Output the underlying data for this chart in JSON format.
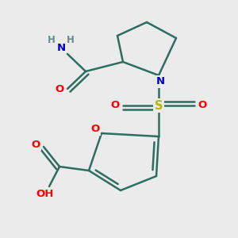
{
  "bg_color": "#ebebeb",
  "bond_color": "#2d6e5e",
  "bond_width": 1.8,
  "atom_colors": {
    "O": "#ff0000",
    "N": "#0000cc",
    "S": "#b8b800",
    "H": "#6a8a8a",
    "C": "#2d6e5e"
  },
  "font_size": 9.5
}
